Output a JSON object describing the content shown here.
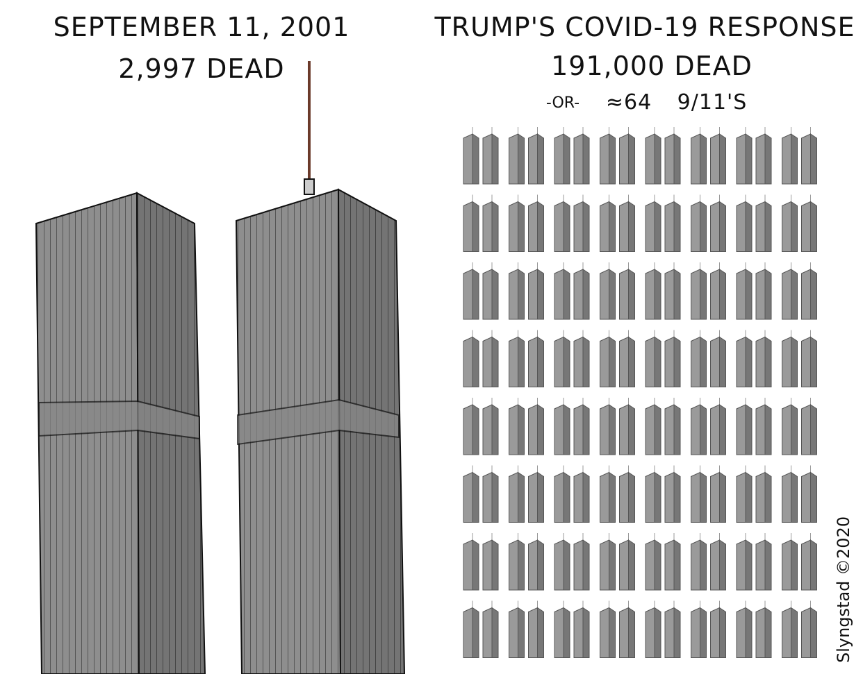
{
  "left": {
    "title": "SEPTEMBER 11, 2001",
    "subtitle": "2,997 DEAD"
  },
  "right": {
    "title": "TRUMP'S COVID-19 RESPONSE",
    "subtitle": "191,000 DEAD",
    "or": "-OR-",
    "count": "≈64",
    "unit": "9/11'S"
  },
  "signature": "Slyngstad ©2020"
}
